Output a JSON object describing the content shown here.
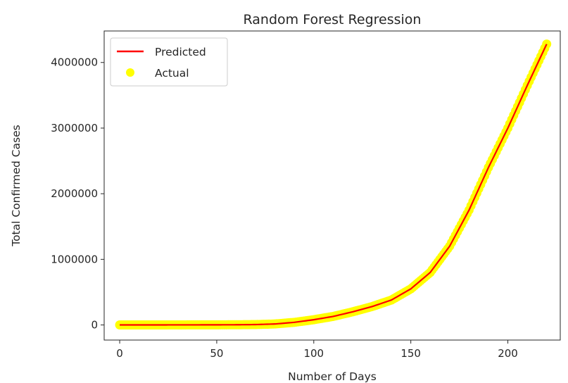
{
  "chart_data": {
    "type": "line",
    "title": "Random Forest Regression",
    "xlabel": "Number of Days",
    "ylabel": "Total Confirmed Cases",
    "xlim": [
      -8,
      227
    ],
    "ylim": [
      -230000,
      4480000
    ],
    "xticks": [
      0,
      50,
      100,
      150,
      200
    ],
    "yticks": [
      0,
      1000000,
      2000000,
      3000000,
      4000000
    ],
    "xtick_labels": [
      "0",
      "50",
      "100",
      "150",
      "200"
    ],
    "ytick_labels": [
      "0",
      "1000000",
      "2000000",
      "3000000",
      "4000000"
    ],
    "grid": false,
    "legend_position": "upper-left",
    "series": [
      {
        "name": "Predicted",
        "kind": "line",
        "color": "#ff0000",
        "x": [
          0,
          20,
          40,
          60,
          70,
          80,
          90,
          100,
          110,
          120,
          130,
          140,
          150,
          160,
          170,
          180,
          190,
          200,
          210,
          220
        ],
        "values": [
          500,
          900,
          1500,
          3000,
          6000,
          15000,
          40000,
          80000,
          130000,
          200000,
          280000,
          380000,
          550000,
          800000,
          1200000,
          1750000,
          2400000,
          3000000,
          3650000,
          4280000
        ]
      },
      {
        "name": "Actual",
        "kind": "scatter",
        "color": "#ffff00",
        "x": [
          0,
          20,
          40,
          60,
          70,
          80,
          90,
          100,
          110,
          120,
          130,
          140,
          150,
          160,
          170,
          180,
          190,
          200,
          210,
          220
        ],
        "values": [
          500,
          900,
          1500,
          3000,
          6000,
          15000,
          40000,
          80000,
          130000,
          200000,
          280000,
          380000,
          550000,
          800000,
          1200000,
          1750000,
          2400000,
          3000000,
          3650000,
          4280000
        ]
      }
    ]
  }
}
